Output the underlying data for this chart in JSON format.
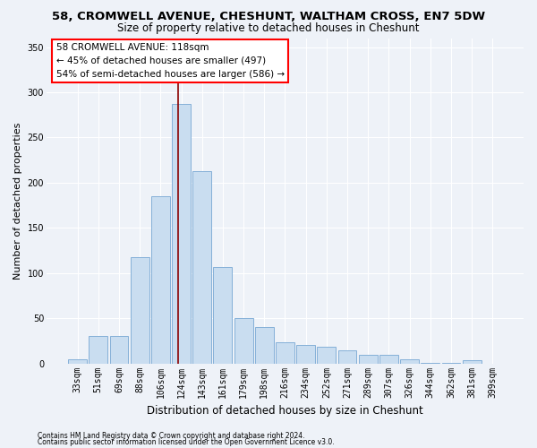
{
  "title": "58, CROMWELL AVENUE, CHESHUNT, WALTHAM CROSS, EN7 5DW",
  "subtitle": "Size of property relative to detached houses in Cheshunt",
  "xlabel": "Distribution of detached houses by size in Cheshunt",
  "ylabel": "Number of detached properties",
  "categories": [
    "33sqm",
    "51sqm",
    "69sqm",
    "88sqm",
    "106sqm",
    "124sqm",
    "143sqm",
    "161sqm",
    "179sqm",
    "198sqm",
    "216sqm",
    "234sqm",
    "252sqm",
    "271sqm",
    "289sqm",
    "307sqm",
    "326sqm",
    "344sqm",
    "362sqm",
    "381sqm",
    "399sqm"
  ],
  "values": [
    5,
    30,
    30,
    118,
    185,
    287,
    213,
    107,
    50,
    40,
    23,
    20,
    18,
    15,
    10,
    10,
    5,
    1,
    1,
    4,
    0
  ],
  "bar_color": "#c9ddf0",
  "bar_edge_color": "#85b0d8",
  "ylim": [
    0,
    360
  ],
  "yticks": [
    0,
    50,
    100,
    150,
    200,
    250,
    300,
    350
  ],
  "property_label": "58 CROMWELL AVENUE: 118sqm",
  "annotation_line1": "← 45% of detached houses are smaller (497)",
  "annotation_line2": "54% of semi-detached houses are larger (586) →",
  "vline_x": 4.85,
  "footer_line1": "Contains HM Land Registry data © Crown copyright and database right 2024.",
  "footer_line2": "Contains public sector information licensed under the Open Government Licence v3.0.",
  "background_color": "#eef2f8",
  "grid_color": "#ffffff",
  "title_fontsize": 9.5,
  "subtitle_fontsize": 8.5,
  "xlabel_fontsize": 8.5,
  "tick_fontsize": 7,
  "ylabel_fontsize": 8,
  "annotation_fontsize": 7.5,
  "footer_fontsize": 5.5
}
